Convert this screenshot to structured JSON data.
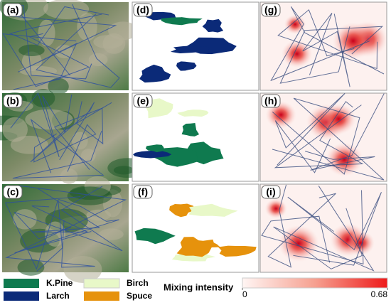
{
  "panels": [
    {
      "label": "(a)",
      "kind": "satellite"
    },
    {
      "label": "(d)",
      "kind": "classes"
    },
    {
      "label": "(g)",
      "kind": "heat"
    },
    {
      "label": "(b)",
      "kind": "satellite"
    },
    {
      "label": "(e)",
      "kind": "classes"
    },
    {
      "label": "(h)",
      "kind": "heat"
    },
    {
      "label": "(c)",
      "kind": "satellite"
    },
    {
      "label": "(f)",
      "kind": "classes"
    },
    {
      "label": "(i)",
      "kind": "heat"
    }
  ],
  "legend": {
    "items": [
      {
        "name": "K.Pine",
        "color": "#0f7a4f"
      },
      {
        "name": "Larch",
        "color": "#0b2a78"
      },
      {
        "name": "Birch",
        "color": "#e8f8c8"
      },
      {
        "name": "Spuce",
        "color": "#e6920c"
      }
    ]
  },
  "colorbar": {
    "title": "Mixing intensity",
    "range": [
      0,
      0.68
    ],
    "ticks": [
      0,
      0.68
    ]
  }
}
